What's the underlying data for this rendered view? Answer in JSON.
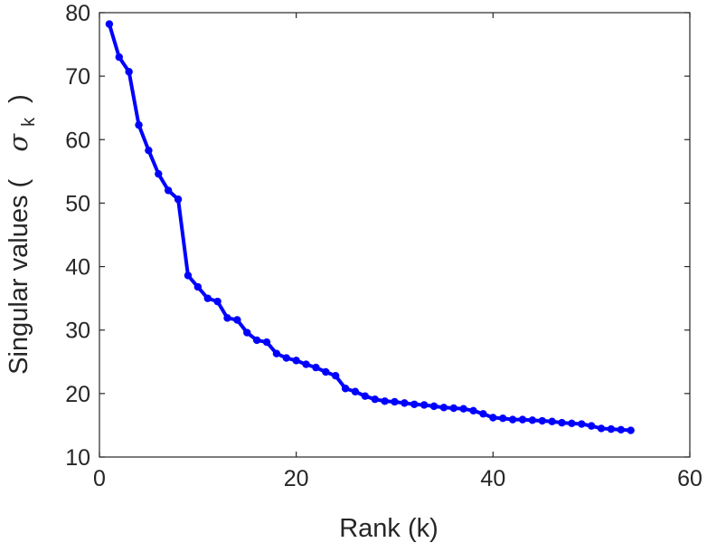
{
  "chart_data": {
    "type": "line",
    "xlabel": "Rank (k)",
    "ylabel": {
      "prefix": "Singular values (",
      "symbol": "σ",
      "subscript": "k",
      "suffix": ")"
    },
    "xlim": [
      0,
      60
    ],
    "ylim": [
      10,
      80
    ],
    "xticks": [
      0,
      20,
      40,
      60
    ],
    "yticks": [
      10,
      20,
      30,
      40,
      50,
      60,
      70,
      80
    ],
    "grid": false,
    "line_color": "#0000ff",
    "series": [
      {
        "x": [
          1,
          2,
          3,
          4,
          5,
          6,
          7,
          8,
          9,
          10,
          11,
          12,
          13,
          14,
          15,
          16,
          17,
          18,
          19,
          20,
          21,
          22,
          23,
          24,
          25,
          26,
          27,
          28,
          29,
          30,
          31,
          32,
          33,
          34,
          35,
          36,
          37,
          38,
          39,
          40,
          41,
          42,
          43,
          44,
          45,
          46,
          47,
          48,
          49,
          50,
          51,
          52,
          53,
          54
        ],
        "values": [
          78.2,
          73.0,
          70.7,
          62.3,
          58.3,
          54.6,
          52.0,
          50.6,
          38.6,
          36.8,
          35.0,
          34.5,
          31.9,
          31.6,
          29.6,
          28.4,
          28.1,
          26.3,
          25.6,
          25.2,
          24.6,
          24.1,
          23.4,
          22.8,
          20.8,
          20.3,
          19.6,
          19.1,
          18.8,
          18.7,
          18.5,
          18.3,
          18.2,
          18.0,
          17.8,
          17.7,
          17.6,
          17.3,
          16.8,
          16.2,
          16.1,
          15.9,
          15.9,
          15.8,
          15.7,
          15.6,
          15.4,
          15.3,
          15.2,
          14.9,
          14.5,
          14.4,
          14.3,
          14.2
        ]
      }
    ]
  }
}
